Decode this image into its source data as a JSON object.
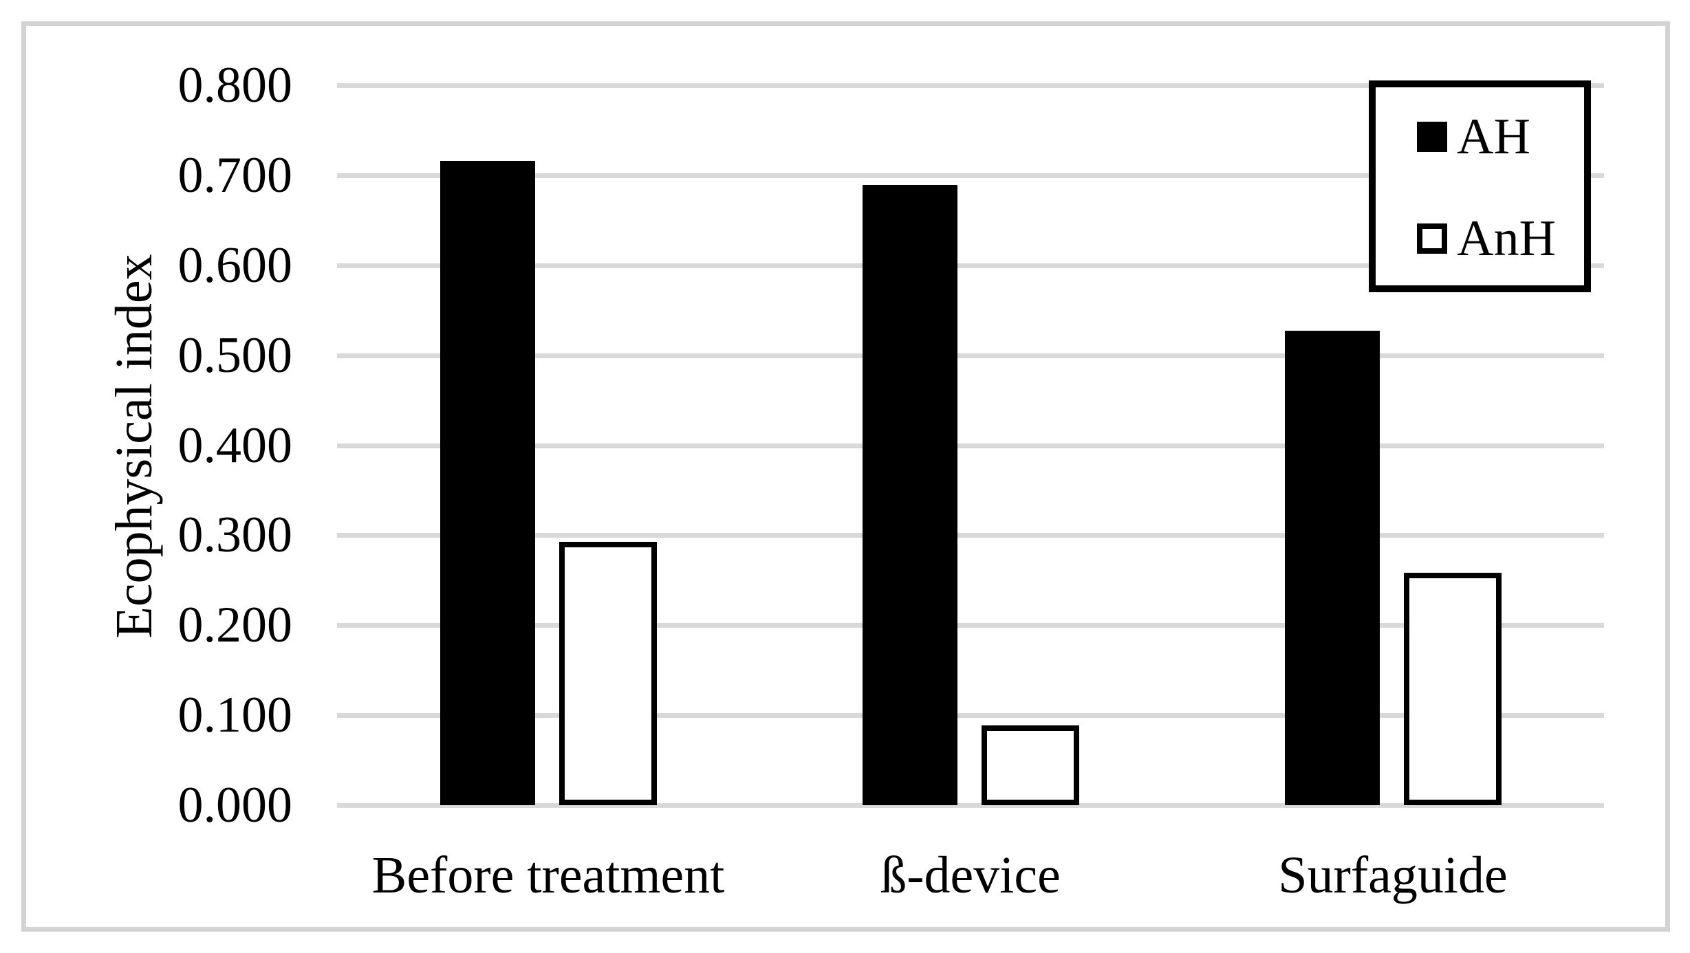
{
  "figure": {
    "y_axis_title": "Ecophysical index",
    "background": "#ffffff",
    "frame_color": "#d3d3d3",
    "gridline_color": "#d9d9d9",
    "text_color": "#000000"
  },
  "legend": {
    "items": [
      {
        "label": "AH",
        "swatch": "filled",
        "color": "#000000"
      },
      {
        "label": "AnH",
        "swatch": "outlined",
        "color": "#ffffff"
      }
    ]
  },
  "chart_data": {
    "type": "bar",
    "title": "",
    "categories": [
      "Before treatment",
      "ß-device",
      "Surfaguide"
    ],
    "series": [
      {
        "name": "AH",
        "style": "filled",
        "fill": "#000000",
        "values": [
          0.716,
          0.689,
          0.527
        ]
      },
      {
        "name": "AnH",
        "style": "outlined",
        "fill": "#ffffff",
        "values": [
          0.293,
          0.089,
          0.258
        ]
      }
    ],
    "xlabel": "",
    "ylabel": "Ecophysical index",
    "ylim": [
      0.0,
      0.8
    ],
    "ytick_step": 0.1,
    "yticks": [
      "0.000",
      "0.100",
      "0.200",
      "0.300",
      "0.400",
      "0.500",
      "0.600",
      "0.700",
      "0.800"
    ],
    "grid": "horizontal",
    "legend_position": "top-right"
  }
}
